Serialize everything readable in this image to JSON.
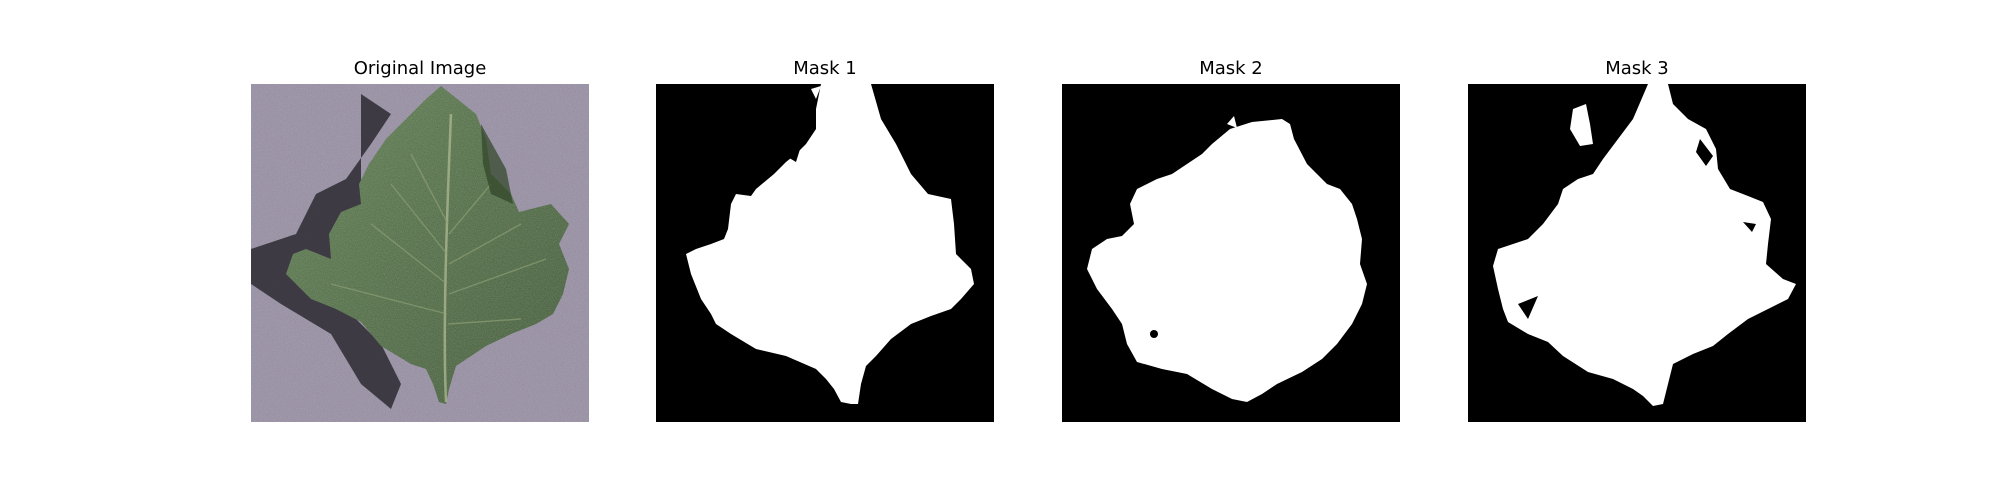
{
  "figure": {
    "panels": [
      {
        "title": "Original Image",
        "kind": "photo",
        "subject": "green leaf on grey textured surface"
      },
      {
        "title": "Mask 1",
        "kind": "mask"
      },
      {
        "title": "Mask 2",
        "kind": "mask"
      },
      {
        "title": "Mask 3",
        "kind": "mask"
      }
    ]
  },
  "colors": {
    "background": "#ffffff",
    "mask_foreground": "#ffffff",
    "mask_background": "#000000",
    "leaf": "#4f6a45",
    "surface": "#8a8296"
  }
}
